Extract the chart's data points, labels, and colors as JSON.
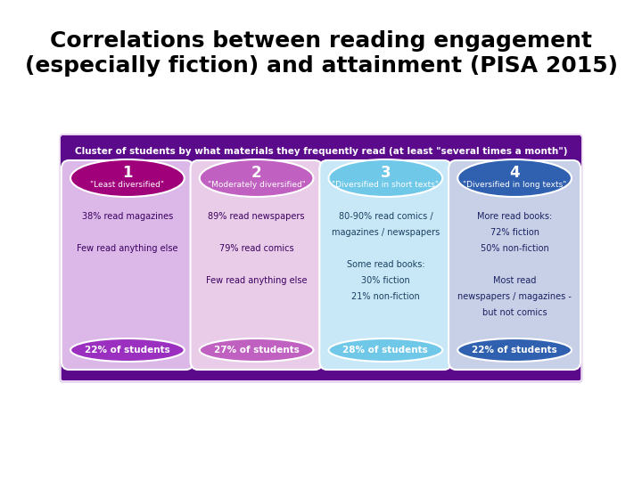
{
  "title": "Correlations between reading engagement\n(especially fiction) and attainment (PISA 2015)",
  "header": "Cluster of students by what materials they frequently read (at least \"several times a month\")",
  "header_bg": "#5b0a8c",
  "header_text_color": "#ffffff",
  "background_color": "#ffffff",
  "infographic_bg": "#e8d8f0",
  "bottom_bar_color": "#5b0a8c",
  "clusters": [
    {
      "number": "1",
      "label": "\"Least diversified\"",
      "top_circle_color": "#a0007a",
      "body_bg": "#dbb8e8",
      "bottom_oval_color": "#9b30c0",
      "text_lines": [
        "38% read magazines",
        "",
        "Few read anything else"
      ],
      "footer": "22% of students",
      "text_color": "#3a0060"
    },
    {
      "number": "2",
      "label": "\"Moderately diversified\"",
      "top_circle_color": "#c060c0",
      "body_bg": "#e8cce8",
      "bottom_oval_color": "#c060c0",
      "text_lines": [
        "89% read newspapers",
        "",
        "79% read comics",
        "",
        "Few read anything else"
      ],
      "footer": "27% of students",
      "text_color": "#3a0060"
    },
    {
      "number": "3",
      "label": "\"Diversified in short texts\"",
      "top_circle_color": "#70c8e8",
      "body_bg": "#c8e8f8",
      "bottom_oval_color": "#70c8e8",
      "text_lines": [
        "80-90% read comics /",
        "magazines / newspapers",
        "",
        "Some read books:",
        "30% fiction",
        "21% non-fiction"
      ],
      "footer": "28% of students",
      "text_color": "#1a4060"
    },
    {
      "number": "4",
      "label": "\"Diversified in long texts\"",
      "top_circle_color": "#3060b0",
      "body_bg": "#c8d0e8",
      "bottom_oval_color": "#3060b0",
      "text_lines": [
        "More read books:",
        "72% fiction",
        "50% non-fiction",
        "",
        "Most read",
        "newspapers / magazines -",
        "but not comics"
      ],
      "footer": "22% of students",
      "text_color": "#1a2060"
    }
  ]
}
